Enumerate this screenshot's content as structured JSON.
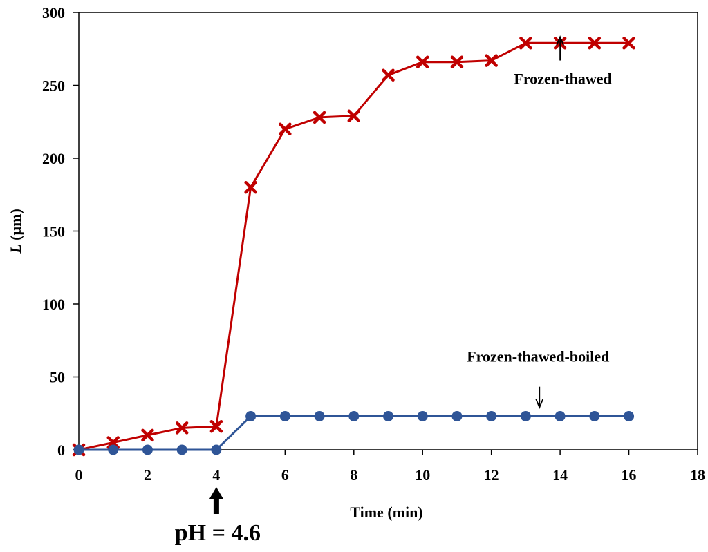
{
  "chart_data": {
    "type": "line",
    "title": "",
    "xlabel": "Time (min)",
    "ylabel_italic": "L",
    "ylabel_rest": " (µm)",
    "xlim": [
      0,
      18
    ],
    "ylim": [
      0,
      300
    ],
    "xticks": [
      0,
      2,
      4,
      6,
      8,
      10,
      12,
      14,
      16,
      18
    ],
    "yticks": [
      0,
      50,
      100,
      150,
      200,
      250,
      300
    ],
    "grid": false,
    "series": [
      {
        "name": "Frozen-thawed",
        "marker": "x",
        "color": "#c00000",
        "x": [
          0,
          1,
          2,
          3,
          4,
          5,
          6,
          7,
          8,
          9,
          10,
          11,
          12,
          13,
          14,
          15,
          16
        ],
        "y": [
          0,
          5,
          10,
          15,
          16,
          180,
          220,
          228,
          229,
          257,
          266,
          266,
          267,
          279,
          279,
          279,
          279
        ]
      },
      {
        "name": "Frozen-thawed-boiled",
        "marker": "circle",
        "color": "#2f5597",
        "x": [
          0,
          1,
          2,
          3,
          4,
          5,
          6,
          7,
          8,
          9,
          10,
          11,
          12,
          13,
          14,
          15,
          16
        ],
        "y": [
          0,
          0,
          0,
          0,
          0,
          23,
          23,
          23,
          23,
          23,
          23,
          23,
          23,
          23,
          23,
          23,
          23
        ]
      }
    ],
    "annotations": [
      {
        "text": "Frozen-thawed",
        "arrow": "up",
        "arrow_x": 14,
        "arrow_y": 268
      },
      {
        "text": "Frozen-thawed-boiled",
        "arrow": "down",
        "arrow_x": 13.4,
        "arrow_y": 30
      },
      {
        "text": "pH = 4.6",
        "arrow": "up",
        "arrow_x": 4
      }
    ]
  }
}
